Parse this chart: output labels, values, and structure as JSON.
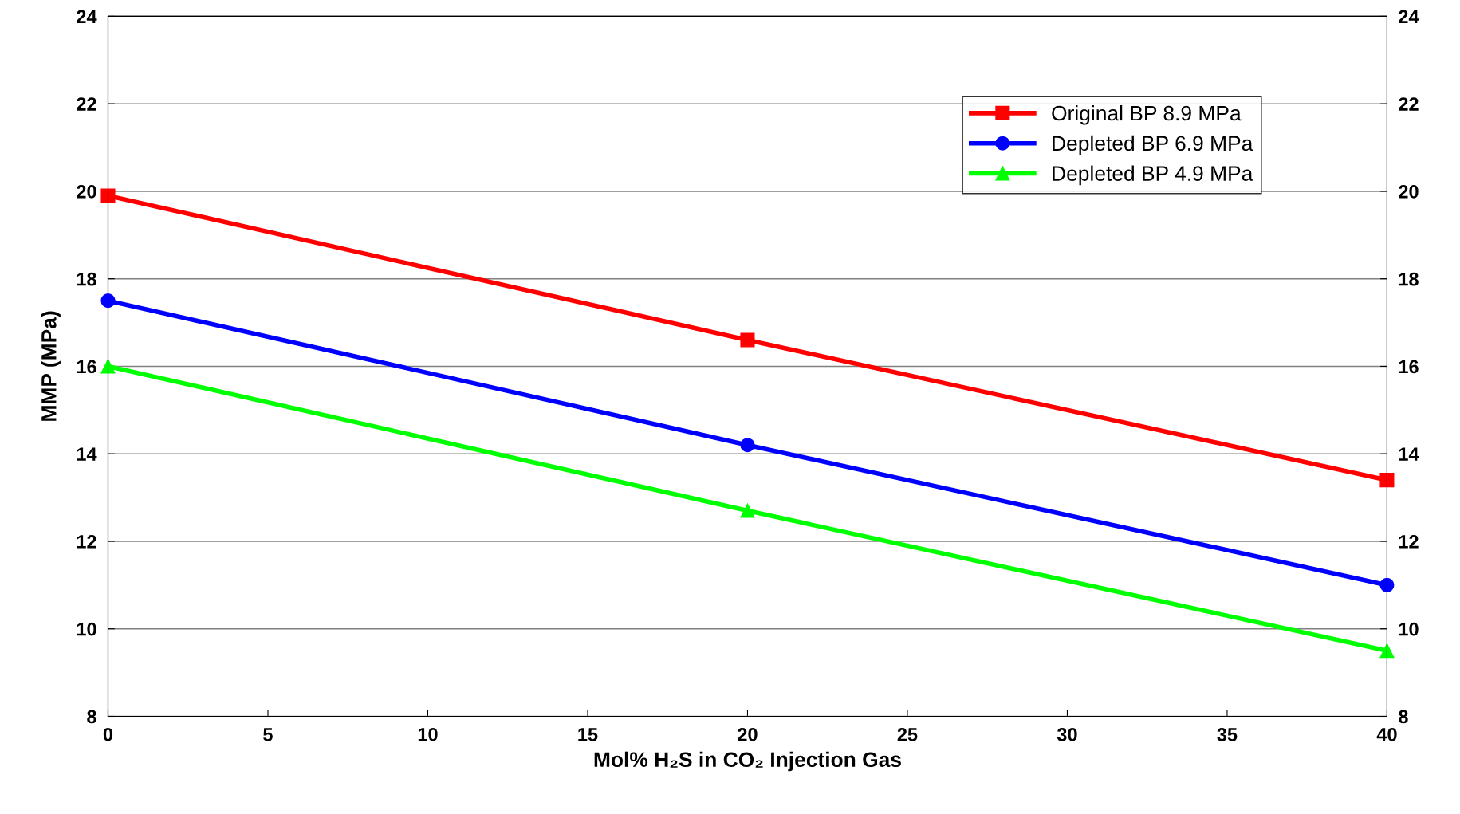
{
  "chart_data": {
    "type": "line",
    "xlabel": "Mol% H₂S in CO₂ Injection Gas",
    "ylabel": "MMP (MPa)",
    "x": [
      0,
      20,
      40
    ],
    "series": [
      {
        "name": "Original BP 8.9 MPa",
        "color": "#ff0000",
        "marker": "square",
        "values": [
          19.9,
          16.6,
          13.4
        ]
      },
      {
        "name": "Depleted BP 6.9 MPa",
        "color": "#0000ff",
        "marker": "circle",
        "values": [
          17.5,
          14.2,
          11.0
        ]
      },
      {
        "name": "Depleted BP 4.9 MPa",
        "color": "#00ff00",
        "marker": "triangle",
        "values": [
          16.0,
          12.7,
          9.5
        ]
      }
    ],
    "xlim": [
      0,
      40
    ],
    "xticks": [
      0,
      5,
      10,
      15,
      20,
      25,
      30,
      35,
      40
    ],
    "ylim": [
      8,
      24
    ],
    "yticks": [
      8,
      10,
      12,
      14,
      16,
      18,
      20,
      22,
      24
    ],
    "y2lim": [
      8,
      24
    ],
    "y2ticks": [
      8,
      10,
      12,
      14,
      16,
      18,
      20,
      22,
      24
    ],
    "grid": "y",
    "legend": "top right",
    "line_style": "solid"
  }
}
